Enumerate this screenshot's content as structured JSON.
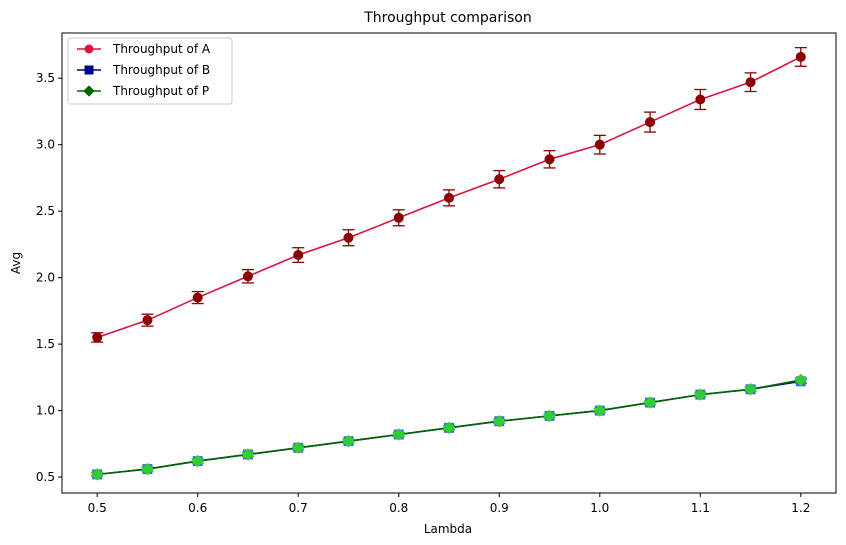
{
  "chart_data": {
    "type": "line",
    "title": "Throughput comparison",
    "xlabel": "Lambda",
    "ylabel": "Avg",
    "xlim": [
      0.465,
      1.235
    ],
    "ylim": [
      0.38,
      3.84
    ],
    "xticks": [
      0.5,
      0.6,
      0.7,
      0.8,
      0.9,
      1.0,
      1.1,
      1.2
    ],
    "xtick_labels": [
      "0.5",
      "0.6",
      "0.7",
      "0.8",
      "0.9",
      "1.0",
      "1.1",
      "1.2"
    ],
    "yticks": [
      0.5,
      1.0,
      1.5,
      2.0,
      2.5,
      3.0,
      3.5
    ],
    "ytick_labels": [
      "0.5",
      "1.0",
      "1.5",
      "2.0",
      "2.5",
      "3.0",
      "3.5"
    ],
    "grid": false,
    "legend_position": "top-left",
    "x": [
      0.5,
      0.55,
      0.6,
      0.65,
      0.7,
      0.75,
      0.8,
      0.85,
      0.9,
      0.95,
      1.0,
      1.05,
      1.1,
      1.15,
      1.2
    ],
    "series": [
      {
        "name": "Throughput of A",
        "marker": "circle",
        "line_color": "#dc143c",
        "point_color": "#8b0000",
        "error_color": "#8b0000",
        "values": [
          1.55,
          1.68,
          1.85,
          2.01,
          2.17,
          2.3,
          2.45,
          2.6,
          2.74,
          2.89,
          3.0,
          3.17,
          3.34,
          3.47,
          3.66
        ],
        "errors": [
          0.035,
          0.045,
          0.045,
          0.05,
          0.055,
          0.06,
          0.06,
          0.06,
          0.065,
          0.065,
          0.07,
          0.075,
          0.075,
          0.07,
          0.07
        ]
      },
      {
        "name": "Throughput of B",
        "marker": "square",
        "line_color": "#00008b",
        "point_color": "#4169e1",
        "error_color": "#4169e1",
        "values": [
          0.52,
          0.56,
          0.62,
          0.67,
          0.72,
          0.77,
          0.82,
          0.87,
          0.92,
          0.96,
          1.0,
          1.06,
          1.12,
          1.16,
          1.22
        ],
        "errors": [
          0.015,
          0.015,
          0.015,
          0.015,
          0.015,
          0.015,
          0.015,
          0.015,
          0.015,
          0.015,
          0.015,
          0.015,
          0.015,
          0.015,
          0.015
        ]
      },
      {
        "name": "Throughput of P",
        "marker": "diamond",
        "line_color": "#006400",
        "point_color": "#32cd32",
        "error_color": "#32cd32",
        "values": [
          0.52,
          0.56,
          0.62,
          0.67,
          0.72,
          0.77,
          0.82,
          0.87,
          0.92,
          0.96,
          1.0,
          1.06,
          1.12,
          1.16,
          1.23
        ],
        "errors": [
          0.015,
          0.015,
          0.015,
          0.015,
          0.015,
          0.015,
          0.015,
          0.015,
          0.015,
          0.015,
          0.015,
          0.015,
          0.015,
          0.015,
          0.015
        ]
      }
    ]
  }
}
